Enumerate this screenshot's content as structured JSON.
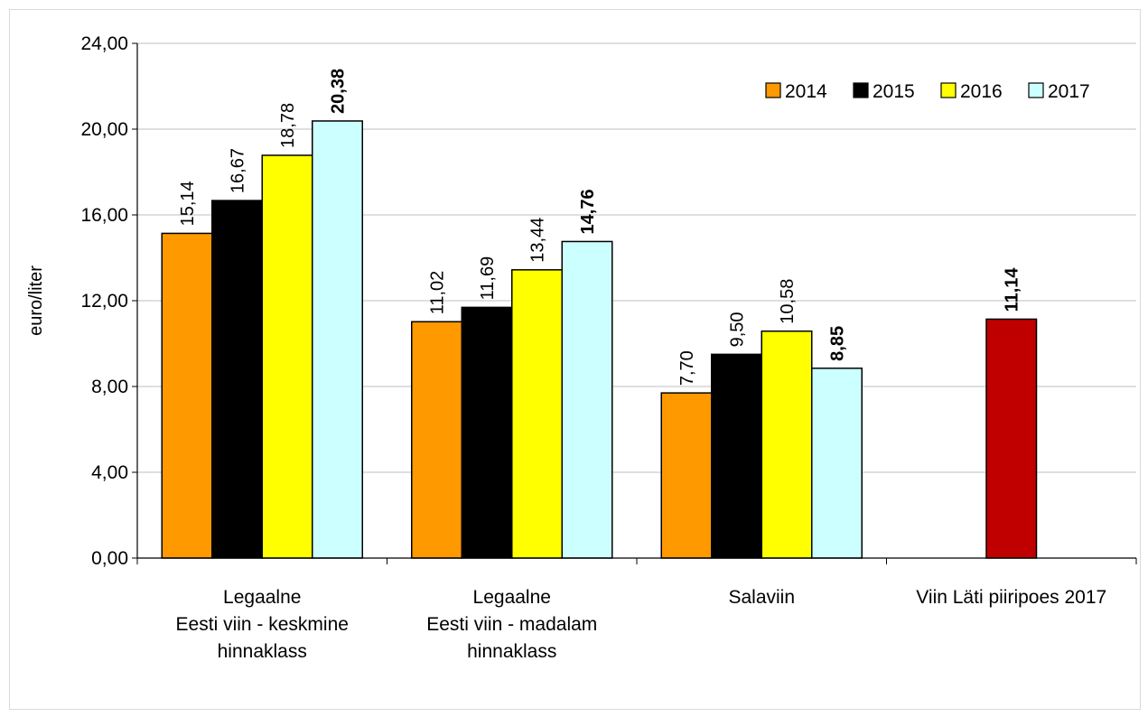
{
  "chart_data": {
    "type": "bar",
    "title": "",
    "ylabel": "euro/liter",
    "xlabel": "",
    "ylim": [
      0,
      24
    ],
    "yticks": [
      "0,00",
      "4,00",
      "8,00",
      "12,00",
      "16,00",
      "20,00",
      "24,00"
    ],
    "ytick_values": [
      0,
      4,
      8,
      12,
      16,
      20,
      24
    ],
    "grid": true,
    "legend_position": "top-right",
    "categories": [
      [
        "Legaalne",
        "Eesti viin - keskmine",
        "hinnaklass"
      ],
      [
        "Legaalne",
        "Eesti viin - madalam",
        "hinnaklass"
      ],
      [
        "Salaviin"
      ],
      [
        "Viin Läti piiripoes 2017"
      ]
    ],
    "series": [
      {
        "name": "2014",
        "color": "#ff9900",
        "values": [
          15.14,
          11.02,
          7.7,
          null
        ],
        "labels": [
          "15,14",
          "11,02",
          "7,70",
          ""
        ],
        "bold": false
      },
      {
        "name": "2015",
        "color": "#000000",
        "values": [
          16.67,
          11.69,
          9.5,
          null
        ],
        "labels": [
          "16,67",
          "11,69",
          "9,50",
          ""
        ],
        "bold": false
      },
      {
        "name": "2016",
        "color": "#ffff00",
        "values": [
          18.78,
          13.44,
          10.58,
          null
        ],
        "labels": [
          "18,78",
          "13,44",
          "10,58",
          ""
        ],
        "bold": false
      },
      {
        "name": "2017",
        "color": "#ccffff",
        "values": [
          20.38,
          14.76,
          8.85,
          null
        ],
        "labels": [
          "20,38",
          "14,76",
          "8,85",
          ""
        ],
        "bold": true
      }
    ],
    "extra_bar": {
      "category_index": 3,
      "value": 11.14,
      "label": "11,14",
      "color": "#c00000",
      "bold": true
    }
  }
}
